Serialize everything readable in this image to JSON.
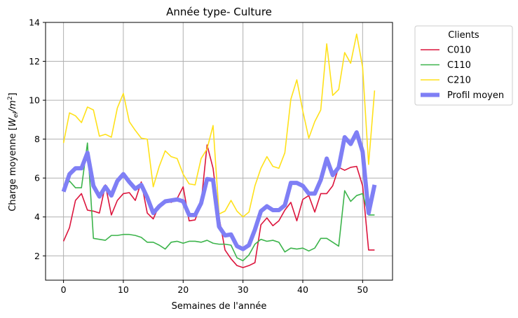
{
  "chart_data": {
    "type": "line",
    "title": "Année type- Culture",
    "xlabel": "Semaines de l'année",
    "ylabel": "Charge moyenne [",
    "ylabel_unit": "W",
    "ylabel_unit_sub": "el",
    "ylabel_unit_den": "/m",
    "ylabel_unit_exp": "2",
    "ylabel_close": "]",
    "xlim": [
      -3,
      55
    ],
    "ylim": [
      0.75,
      14
    ],
    "xticks": [
      0,
      10,
      20,
      30,
      40,
      50
    ],
    "yticks": [
      2,
      4,
      6,
      8,
      10,
      12,
      14
    ],
    "grid": true,
    "legend": {
      "title": "Clients",
      "placement": "outside-top-right"
    },
    "x": [
      0,
      1,
      2,
      3,
      4,
      5,
      6,
      7,
      8,
      9,
      10,
      11,
      12,
      13,
      14,
      15,
      16,
      17,
      18,
      19,
      20,
      21,
      22,
      23,
      24,
      25,
      26,
      27,
      28,
      29,
      30,
      31,
      32,
      33,
      34,
      35,
      36,
      37,
      38,
      39,
      40,
      41,
      42,
      43,
      44,
      45,
      46,
      47,
      48,
      49,
      50,
      51,
      52
    ],
    "series": [
      {
        "name": "C010",
        "color": "#dc143c",
        "values": [
          2.75,
          3.45,
          4.85,
          5.2,
          4.35,
          4.3,
          4.2,
          5.65,
          4.1,
          4.85,
          5.2,
          5.25,
          4.85,
          5.8,
          4.2,
          3.9,
          4.6,
          4.85,
          4.75,
          4.95,
          5.55,
          3.8,
          3.85,
          4.7,
          7.7,
          6.5,
          4.0,
          2.3,
          1.85,
          1.5,
          1.4,
          1.5,
          1.65,
          3.6,
          3.95,
          3.55,
          3.8,
          4.35,
          4.75,
          3.8,
          4.9,
          5.1,
          4.25,
          5.2,
          5.2,
          5.6,
          6.55,
          6.4,
          6.55,
          6.6,
          5.6,
          2.3,
          2.3
        ]
      },
      {
        "name": "C110",
        "color": "#3cb44b",
        "values": [
          5.45,
          5.85,
          5.5,
          5.5,
          7.8,
          2.9,
          2.85,
          2.8,
          3.05,
          3.05,
          3.1,
          3.1,
          3.05,
          2.95,
          2.7,
          2.7,
          2.55,
          2.35,
          2.7,
          2.75,
          2.65,
          2.75,
          2.75,
          2.7,
          2.8,
          2.65,
          2.6,
          2.6,
          2.55,
          1.9,
          1.75,
          2.05,
          2.6,
          2.85,
          2.75,
          2.8,
          2.7,
          2.2,
          2.4,
          2.35,
          2.4,
          2.25,
          2.4,
          2.9,
          2.9,
          2.7,
          2.5,
          5.35,
          4.8,
          5.1,
          5.2,
          4.1,
          4.1
        ]
      },
      {
        "name": "C210",
        "color": "#ffe119",
        "values": [
          7.8,
          9.35,
          9.2,
          8.85,
          9.65,
          9.5,
          8.15,
          8.25,
          8.1,
          9.6,
          10.35,
          8.9,
          8.45,
          8.05,
          8.0,
          5.55,
          6.6,
          7.4,
          7.1,
          7.0,
          6.2,
          5.7,
          5.65,
          7.0,
          7.5,
          8.7,
          4.15,
          4.3,
          4.85,
          4.3,
          4.0,
          4.25,
          5.6,
          6.5,
          7.1,
          6.6,
          6.5,
          7.3,
          10.05,
          11.05,
          9.45,
          8.05,
          8.9,
          9.5,
          12.9,
          10.25,
          10.55,
          12.45,
          11.9,
          13.4,
          11.7,
          6.7,
          10.5
        ]
      },
      {
        "name": "Profil moyen",
        "color": "#7f7ff5",
        "thick": true,
        "values": [
          5.3,
          6.2,
          6.5,
          6.5,
          7.3,
          5.6,
          5.05,
          5.55,
          5.1,
          5.85,
          6.2,
          5.8,
          5.45,
          5.65,
          5.0,
          4.2,
          4.55,
          4.8,
          4.85,
          4.9,
          4.8,
          4.1,
          4.1,
          4.7,
          5.95,
          5.9,
          3.5,
          3.05,
          3.1,
          2.5,
          2.35,
          2.55,
          3.35,
          4.3,
          4.55,
          4.35,
          4.35,
          4.6,
          5.75,
          5.75,
          5.6,
          5.2,
          5.2,
          5.9,
          7.0,
          6.15,
          6.55,
          8.1,
          7.75,
          8.35,
          7.35,
          4.2,
          5.65
        ]
      }
    ]
  }
}
